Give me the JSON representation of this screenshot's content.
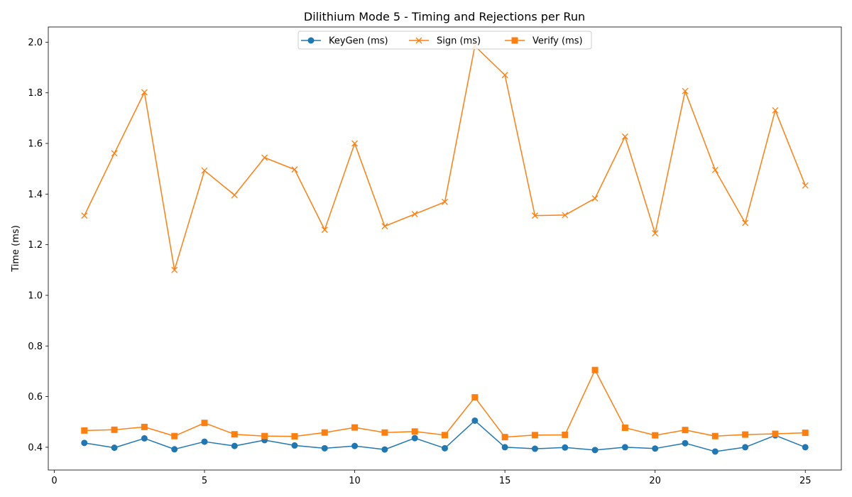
{
  "chart_data": {
    "type": "line",
    "title": "Dilithium Mode 5 - Timing and Rejections per Run",
    "xlabel": "",
    "ylabel": "Time (ms)",
    "xlim": [
      -0.2,
      26.2
    ],
    "ylim": [
      0.31,
      2.06
    ],
    "xticks": [
      0,
      5,
      10,
      15,
      20,
      25
    ],
    "yticks": [
      0.4,
      0.6,
      0.8,
      1.0,
      1.2,
      1.4,
      1.6,
      1.8,
      2.0
    ],
    "ytick_labels": [
      "0.4",
      "0.6",
      "0.8",
      "1.0",
      "1.2",
      "1.4",
      "1.6",
      "1.8",
      "2.0"
    ],
    "grid": false,
    "legend_position": "top-center",
    "x": [
      1,
      2,
      3,
      4,
      5,
      6,
      7,
      8,
      9,
      10,
      11,
      12,
      13,
      14,
      15,
      16,
      17,
      18,
      19,
      20,
      21,
      22,
      23,
      24,
      25
    ],
    "series": [
      {
        "name": "KeyGen (ms)",
        "color": "#1f77b4",
        "marker": "circle",
        "values": [
          0.417,
          0.398,
          0.435,
          0.392,
          0.422,
          0.405,
          0.428,
          0.407,
          0.396,
          0.405,
          0.391,
          0.436,
          0.396,
          0.505,
          0.4,
          0.394,
          0.399,
          0.389,
          0.4,
          0.395,
          0.416,
          0.383,
          0.4,
          0.447,
          0.4
        ]
      },
      {
        "name": "Sign (ms)",
        "color": "#ff7f0e",
        "marker": "x",
        "values": [
          1.315,
          1.561,
          1.802,
          1.1,
          1.493,
          1.396,
          1.544,
          1.497,
          1.259,
          1.6,
          1.273,
          1.321,
          1.369,
          1.985,
          1.87,
          1.315,
          1.317,
          1.383,
          1.627,
          1.245,
          1.807,
          1.495,
          1.286,
          1.731,
          1.434
        ]
      },
      {
        "name": "Verify (ms)",
        "color": "#ff7f0e",
        "marker": "square",
        "values": [
          0.466,
          0.469,
          0.48,
          0.444,
          0.496,
          0.451,
          0.444,
          0.443,
          0.458,
          0.478,
          0.458,
          0.462,
          0.448,
          0.597,
          0.44,
          0.448,
          0.449,
          0.705,
          0.477,
          0.447,
          0.468,
          0.444,
          0.45,
          0.453,
          0.457
        ]
      }
    ]
  }
}
